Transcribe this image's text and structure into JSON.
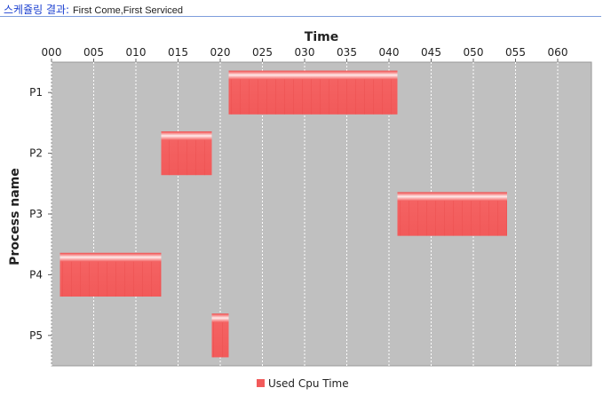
{
  "header": {
    "label": "스케쥴링 결과:",
    "algorithm": "First Come,First Serviced"
  },
  "chart_data": {
    "type": "gantt",
    "title": "",
    "xlabel": "Time",
    "ylabel": "Process name",
    "x_axis_position": "top",
    "xlim": [
      0,
      64
    ],
    "x_ticks": [
      0,
      5,
      10,
      15,
      20,
      25,
      30,
      35,
      40,
      45,
      50,
      55,
      60
    ],
    "x_tick_labels": [
      "000",
      "005",
      "010",
      "015",
      "020",
      "025",
      "030",
      "035",
      "040",
      "045",
      "050",
      "055",
      "060"
    ],
    "categories": [
      "P1",
      "P2",
      "P3",
      "P4",
      "P5"
    ],
    "grid": true,
    "legend_position": "bottom-center",
    "series": [
      {
        "name": "Used Cpu Time",
        "color": "#f25a5a",
        "tasks": [
          {
            "process": "P1",
            "start": 21,
            "end": 41
          },
          {
            "process": "P2",
            "start": 13,
            "end": 19
          },
          {
            "process": "P3",
            "start": 41,
            "end": 54
          },
          {
            "process": "P4",
            "start": 1,
            "end": 13
          },
          {
            "process": "P5",
            "start": 19,
            "end": 21
          }
        ]
      }
    ],
    "colors": {
      "plot_background": "#c0c0c0",
      "grid": "#ffffff",
      "bar": "#f25a5a",
      "bar_highlight": "#ffe6e6"
    }
  }
}
